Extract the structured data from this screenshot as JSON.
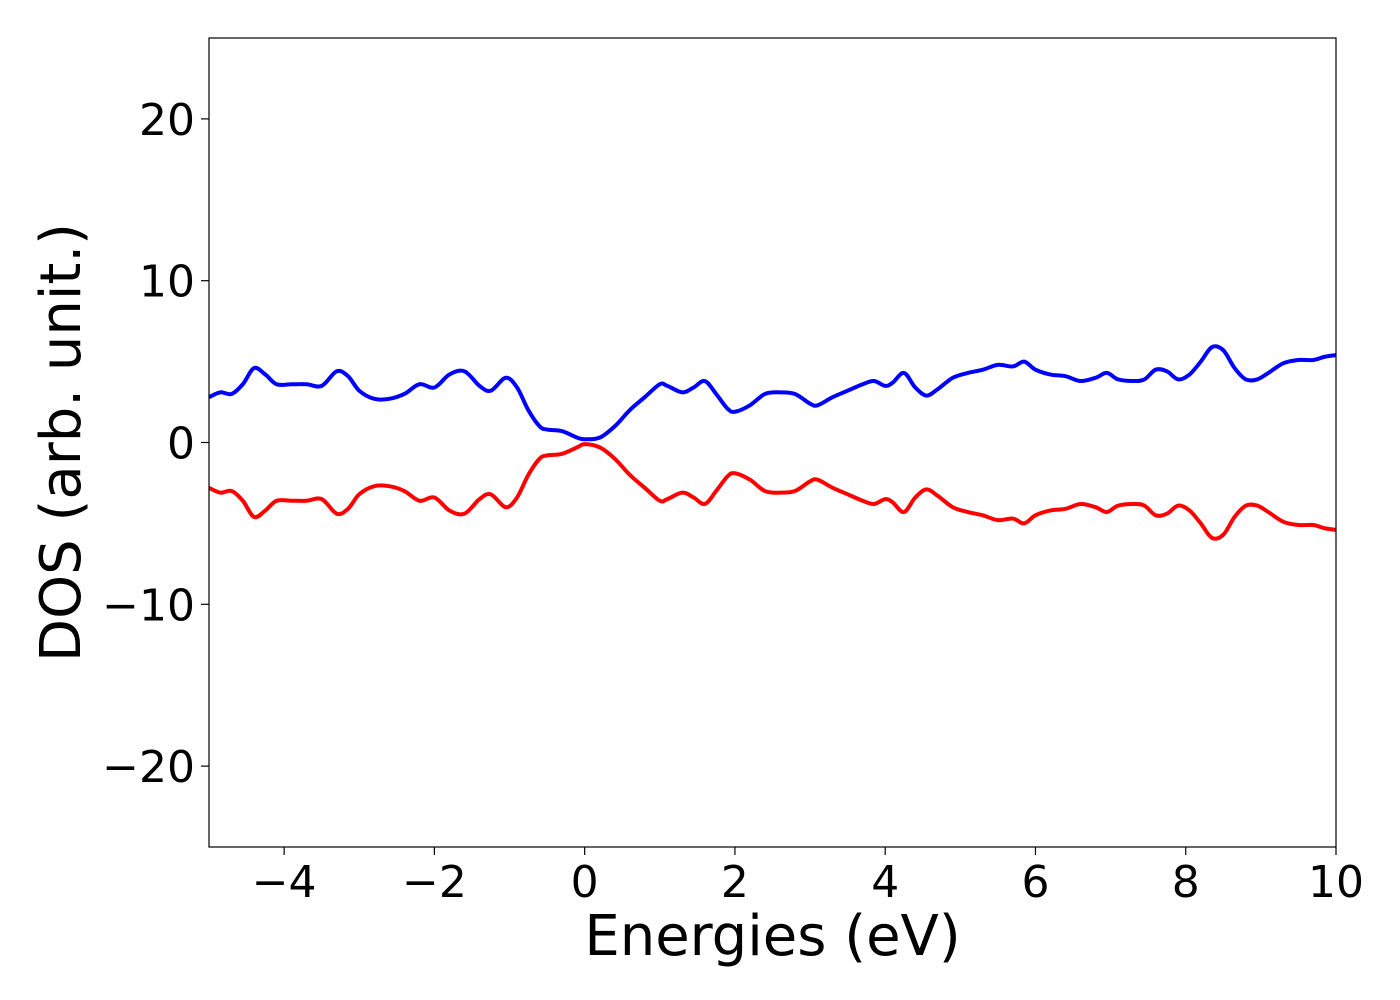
{
  "chart_data": {
    "type": "line",
    "xlabel": "Energies (eV)",
    "ylabel": "DOS (arb. unit.)",
    "xlim": [
      -5,
      10
    ],
    "ylim": [
      -25,
      25
    ],
    "xticks": [
      -4,
      -2,
      0,
      2,
      4,
      6,
      8,
      10
    ],
    "xtick_labels": [
      "−4",
      "−2",
      "0",
      "2",
      "4",
      "6",
      "8",
      "10"
    ],
    "yticks": [
      -20,
      -10,
      0,
      10,
      20
    ],
    "ytick_labels": [
      "−20",
      "−10",
      "0",
      "10",
      "20"
    ],
    "grid": false,
    "series": [
      {
        "color": "#0000ff",
        "x": [
          -5.0,
          -4.85,
          -4.7,
          -4.55,
          -4.4,
          -4.25,
          -4.1,
          -3.9,
          -3.7,
          -3.5,
          -3.3,
          -3.15,
          -3.0,
          -2.8,
          -2.6,
          -2.4,
          -2.2,
          -2.0,
          -1.8,
          -1.6,
          -1.4,
          -1.25,
          -1.05,
          -0.9,
          -0.75,
          -0.6,
          -0.5,
          -0.3,
          -0.1,
          0.0,
          0.2,
          0.4,
          0.6,
          0.8,
          1.0,
          1.1,
          1.3,
          1.45,
          1.6,
          1.75,
          1.9,
          2.0,
          2.2,
          2.4,
          2.6,
          2.8,
          3.0,
          3.1,
          3.3,
          3.5,
          3.7,
          3.85,
          4.0,
          4.1,
          4.25,
          4.4,
          4.55,
          4.7,
          4.9,
          5.1,
          5.3,
          5.5,
          5.7,
          5.85,
          6.0,
          6.2,
          6.4,
          6.6,
          6.8,
          6.95,
          7.1,
          7.3,
          7.45,
          7.6,
          7.75,
          7.9,
          8.05,
          8.2,
          8.35,
          8.5,
          8.65,
          8.8,
          8.95,
          9.1,
          9.3,
          9.5,
          9.7,
          9.85,
          10.0
        ],
        "values": [
          2.8,
          3.1,
          3.0,
          3.6,
          4.6,
          4.2,
          3.6,
          3.6,
          3.6,
          3.5,
          4.4,
          4.1,
          3.2,
          2.7,
          2.7,
          3.0,
          3.6,
          3.4,
          4.2,
          4.4,
          3.5,
          3.2,
          4.0,
          3.4,
          2.0,
          1.0,
          0.8,
          0.7,
          0.3,
          0.2,
          0.3,
          1.0,
          2.0,
          2.8,
          3.6,
          3.5,
          3.1,
          3.4,
          3.8,
          3.0,
          2.1,
          1.9,
          2.3,
          3.0,
          3.1,
          3.0,
          2.4,
          2.3,
          2.8,
          3.2,
          3.6,
          3.8,
          3.5,
          3.7,
          4.3,
          3.4,
          2.9,
          3.3,
          4.0,
          4.3,
          4.5,
          4.8,
          4.7,
          5.0,
          4.5,
          4.2,
          4.1,
          3.8,
          4.0,
          4.3,
          3.9,
          3.8,
          3.9,
          4.5,
          4.4,
          3.9,
          4.2,
          5.0,
          5.9,
          5.7,
          4.6,
          3.9,
          3.9,
          4.3,
          4.9,
          5.1,
          5.1,
          5.3,
          5.4
        ]
      },
      {
        "color": "#ff0000",
        "x": [
          -5.0,
          -4.85,
          -4.7,
          -4.55,
          -4.4,
          -4.25,
          -4.1,
          -3.9,
          -3.7,
          -3.5,
          -3.3,
          -3.15,
          -3.0,
          -2.8,
          -2.6,
          -2.4,
          -2.2,
          -2.0,
          -1.8,
          -1.6,
          -1.4,
          -1.25,
          -1.05,
          -0.9,
          -0.75,
          -0.6,
          -0.5,
          -0.3,
          -0.1,
          0.0,
          0.2,
          0.4,
          0.6,
          0.8,
          1.0,
          1.1,
          1.3,
          1.45,
          1.6,
          1.75,
          1.9,
          2.0,
          2.2,
          2.4,
          2.6,
          2.8,
          3.0,
          3.1,
          3.3,
          3.5,
          3.7,
          3.85,
          4.0,
          4.1,
          4.25,
          4.4,
          4.55,
          4.7,
          4.9,
          5.1,
          5.3,
          5.5,
          5.7,
          5.85,
          6.0,
          6.2,
          6.4,
          6.6,
          6.8,
          6.95,
          7.1,
          7.3,
          7.45,
          7.6,
          7.75,
          7.9,
          8.05,
          8.2,
          8.35,
          8.5,
          8.65,
          8.8,
          8.95,
          9.1,
          9.3,
          9.5,
          9.7,
          9.85,
          10.0
        ],
        "values": [
          -2.8,
          -3.1,
          -3.0,
          -3.6,
          -4.6,
          -4.2,
          -3.6,
          -3.6,
          -3.6,
          -3.5,
          -4.4,
          -4.1,
          -3.2,
          -2.7,
          -2.7,
          -3.0,
          -3.6,
          -3.4,
          -4.2,
          -4.4,
          -3.5,
          -3.2,
          -4.0,
          -3.4,
          -2.0,
          -1.0,
          -0.8,
          -0.7,
          -0.3,
          -0.1,
          -0.3,
          -1.0,
          -2.0,
          -2.8,
          -3.6,
          -3.5,
          -3.1,
          -3.4,
          -3.8,
          -3.0,
          -2.1,
          -1.9,
          -2.3,
          -3.0,
          -3.1,
          -3.0,
          -2.4,
          -2.3,
          -2.8,
          -3.2,
          -3.6,
          -3.8,
          -3.5,
          -3.7,
          -4.3,
          -3.4,
          -2.9,
          -3.3,
          -4.0,
          -4.3,
          -4.5,
          -4.8,
          -4.7,
          -5.0,
          -4.5,
          -4.2,
          -4.1,
          -3.8,
          -4.0,
          -4.3,
          -3.9,
          -3.8,
          -3.9,
          -4.5,
          -4.4,
          -3.9,
          -4.2,
          -5.0,
          -5.9,
          -5.7,
          -4.6,
          -3.9,
          -3.9,
          -4.3,
          -4.9,
          -5.1,
          -5.1,
          -5.3,
          -5.4
        ]
      }
    ]
  }
}
